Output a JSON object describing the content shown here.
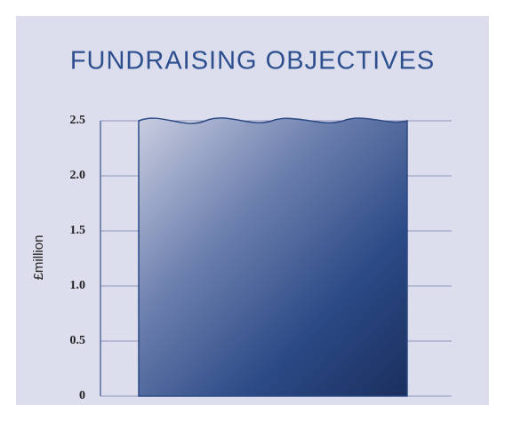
{
  "chart_data": {
    "type": "bar",
    "title": "FUNDRAISING OBJECTIVES",
    "y_label": "£million",
    "categories": [
      null
    ],
    "values": [
      2.5
    ],
    "color": "#2c4a86",
    "ylim": [
      0,
      2.5
    ],
    "yticks": [
      0,
      0.5,
      {
        "value": 1,
        "label": "1.0"
      },
      1.5,
      {
        "value": 2,
        "label": "2.0"
      },
      2.5
    ],
    "grid": true
  }
}
